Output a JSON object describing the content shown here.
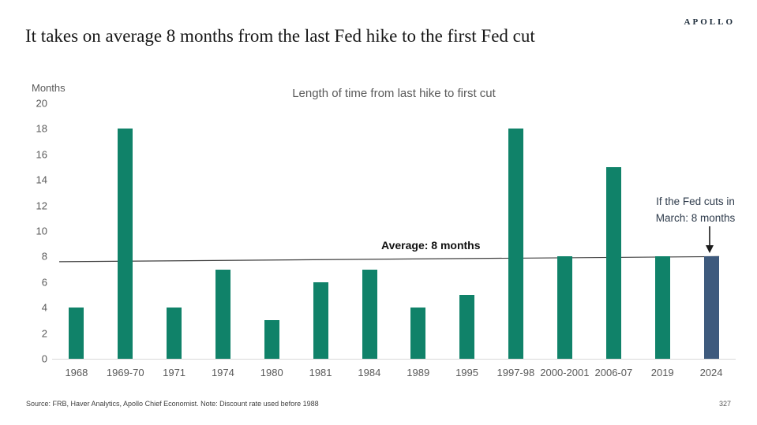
{
  "header": {
    "logo": "APOLLO",
    "title": "It takes on average 8 months from the last Fed hike to the first Fed cut"
  },
  "chart": {
    "average_label": "Average: 8 months",
    "annotation_line1": "If the Fed cuts in",
    "annotation_line2": "March: 8 months"
  },
  "chart_data": {
    "type": "bar",
    "title": "Length of time from last hike to first cut",
    "xlabel": "",
    "ylabel": "Months",
    "ylim": [
      0,
      20
    ],
    "ytick_step": 2,
    "grid": false,
    "legend": false,
    "categories": [
      "1968",
      "1969-70",
      "1971",
      "1974",
      "1980",
      "1981",
      "1984",
      "1989",
      "1995",
      "1997-98",
      "2000-2001",
      "2006-07",
      "2019",
      "2024"
    ],
    "values": [
      4,
      18,
      4,
      7,
      3,
      6,
      7,
      4,
      5,
      18,
      8,
      15,
      8,
      8
    ],
    "bar_color_default": "#108269",
    "bar_color_highlight": "#3e5a7d",
    "highlight_index": 13,
    "average_line": {
      "label": "Average: 8 months",
      "start_value": 7.6,
      "end_value": 8.0,
      "color": "#3f3f3f"
    },
    "annotation": {
      "text": "If the Fed cuts in March: 8 months",
      "target_category": "2024"
    }
  },
  "footer": {
    "source": "Source: FRB, Haver Analytics, Apollo Chief Economist. Note: Discount rate used before 1988",
    "page_number": "327"
  }
}
